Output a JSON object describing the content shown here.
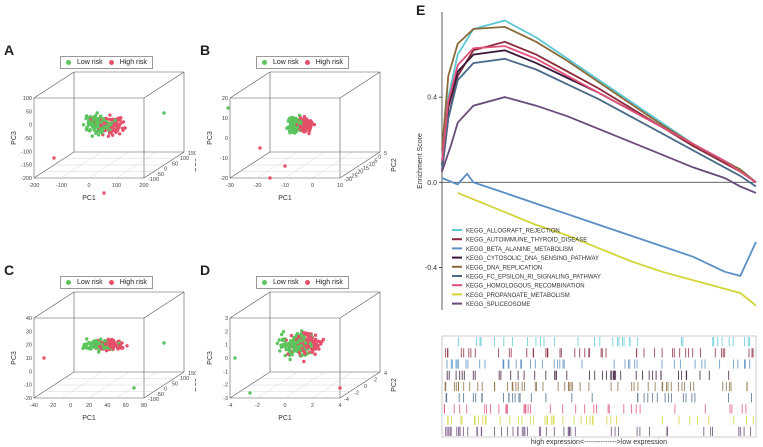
{
  "colors": {
    "low_risk": "#5cc45c",
    "high_risk": "#e5506a",
    "axis": "#444444"
  },
  "legend": {
    "low_label": "Low risk",
    "high_label": "High risk"
  },
  "panels": {
    "A": {
      "label": "A",
      "pc1": {
        "title": "PC1",
        "ticks": [
          "-200",
          "-100",
          "0",
          "100",
          "200"
        ]
      },
      "pc2": {
        "title": "PC2",
        "ticks": [
          "-100",
          "-50",
          "0",
          "50",
          "100",
          "150"
        ]
      },
      "pc3": {
        "title": "PC3",
        "ticks": [
          "-200",
          "-150",
          "-100",
          "-50",
          "0",
          "50",
          "100"
        ]
      }
    },
    "B": {
      "label": "B",
      "pc1": {
        "title": "PC1",
        "ticks": [
          "-30",
          "-20",
          "-10",
          "0",
          "10"
        ]
      },
      "pc2": {
        "title": "PC2",
        "ticks": [
          "-30",
          "-25",
          "-20",
          "-15",
          "-10",
          "-5",
          "0",
          "5"
        ]
      },
      "pc3": {
        "title": "PC3",
        "ticks": [
          "-20",
          "-10",
          "0",
          "10",
          "20"
        ]
      }
    },
    "C": {
      "label": "C",
      "pc1": {
        "title": "PC1",
        "ticks": [
          "-40",
          "-20",
          "0",
          "20",
          "40",
          "60",
          "80"
        ]
      },
      "pc2": {
        "title": "PC2",
        "ticks": [
          "-100",
          "-50",
          "0",
          "50",
          "100",
          "150"
        ]
      },
      "pc3": {
        "title": "PC3",
        "ticks": [
          "-20",
          "-10",
          "0",
          "10",
          "20",
          "30",
          "40"
        ]
      }
    },
    "D": {
      "label": "D",
      "pc1": {
        "title": "PC1",
        "ticks": [
          "-4",
          "-2",
          "0",
          "2",
          "4"
        ]
      },
      "pc2": {
        "title": "PC2",
        "ticks": [
          "-4",
          "-2",
          "0",
          "2",
          "4"
        ]
      },
      "pc3": {
        "title": "PC3",
        "ticks": [
          "-3",
          "-2",
          "-1",
          "0",
          "1",
          "2",
          "3"
        ]
      }
    }
  },
  "panel_e": {
    "label": "E",
    "ylabel": "Enrichment Score",
    "xcaption": "high expression<-------------->low expression"
  },
  "chart_data": {
    "type": "line",
    "title": "",
    "ylabel": "Enrichment Score",
    "xlabel": "high expression<-------------->low expression",
    "xlim": [
      0,
      100
    ],
    "ylim": [
      -0.6,
      0.8
    ],
    "yticks": [
      "-0.4",
      "0.0",
      "0.4"
    ],
    "ytick_values": [
      -0.4,
      0.0,
      0.4
    ],
    "series": [
      {
        "name": "KEGG_ALLOGRAFT_REJECTION",
        "color": "#5bc8d4",
        "x": [
          0,
          2,
          5,
          10,
          20,
          30,
          40,
          50,
          60,
          70,
          80,
          90,
          95,
          100
        ],
        "y": [
          0.1,
          0.4,
          0.6,
          0.72,
          0.76,
          0.68,
          0.58,
          0.48,
          0.38,
          0.28,
          0.18,
          0.1,
          0.06,
          0.0
        ]
      },
      {
        "name": "KEGG_AUTOIMMUNE_THYROID_DISEASE",
        "color": "#8a2a3a",
        "x": [
          0,
          2,
          5,
          10,
          20,
          30,
          40,
          50,
          60,
          70,
          80,
          90,
          95,
          100
        ],
        "y": [
          0.05,
          0.3,
          0.5,
          0.62,
          0.66,
          0.6,
          0.52,
          0.44,
          0.35,
          0.26,
          0.17,
          0.09,
          0.05,
          0.0
        ]
      },
      {
        "name": "KEGG_BETA_ALANINE_METABOLISM",
        "color": "#5a8ec4",
        "x": [
          0,
          5,
          8,
          10,
          20,
          30,
          40,
          50,
          60,
          70,
          80,
          90,
          95,
          100
        ],
        "y": [
          0.02,
          -0.01,
          0.04,
          0.0,
          -0.05,
          -0.1,
          -0.15,
          -0.2,
          -0.25,
          -0.3,
          -0.35,
          -0.42,
          -0.44,
          -0.28
        ]
      },
      {
        "name": "KEGG_CYTOSOLIC_DNA_SENSING_PATHWAY",
        "color": "#3a1a3a",
        "x": [
          0,
          2,
          5,
          10,
          20,
          30,
          40,
          50,
          60,
          70,
          80,
          90,
          95,
          100
        ],
        "y": [
          0.08,
          0.35,
          0.52,
          0.6,
          0.62,
          0.56,
          0.49,
          0.42,
          0.34,
          0.26,
          0.18,
          0.1,
          0.05,
          0.0
        ]
      },
      {
        "name": "KEGG_DNA_REPLICATION",
        "color": "#8a6a3a",
        "x": [
          0,
          2,
          5,
          10,
          20,
          30,
          40,
          50,
          60,
          70,
          80,
          90,
          95,
          100
        ],
        "y": [
          0.15,
          0.5,
          0.65,
          0.72,
          0.73,
          0.66,
          0.57,
          0.47,
          0.37,
          0.27,
          0.18,
          0.1,
          0.06,
          0.0
        ]
      },
      {
        "name": "KEGG_FC_EPSILON_RI_SIGNALING_PATHWAY",
        "color": "#4a6a8a",
        "x": [
          0,
          2,
          5,
          10,
          20,
          30,
          40,
          50,
          60,
          70,
          80,
          90,
          95,
          100
        ],
        "y": [
          0.06,
          0.3,
          0.48,
          0.56,
          0.58,
          0.53,
          0.46,
          0.39,
          0.31,
          0.23,
          0.15,
          0.07,
          0.03,
          -0.02
        ]
      },
      {
        "name": "KEGG_HOMOLOGOUS_RECOMBINATION",
        "color": "#e0507a",
        "x": [
          0,
          2,
          5,
          10,
          20,
          30,
          40,
          50,
          60,
          70,
          80,
          90,
          95,
          100
        ],
        "y": [
          0.1,
          0.38,
          0.55,
          0.63,
          0.64,
          0.58,
          0.5,
          0.42,
          0.34,
          0.26,
          0.18,
          0.1,
          0.05,
          0.0
        ]
      },
      {
        "name": "KEGG_PROPANOATE_METABOLISM",
        "color": "#d4d43a",
        "x": [
          5,
          10,
          20,
          30,
          40,
          50,
          60,
          70,
          80,
          90,
          95,
          100
        ],
        "y": [
          -0.05,
          -0.08,
          -0.14,
          -0.2,
          -0.25,
          -0.31,
          -0.37,
          -0.42,
          -0.46,
          -0.5,
          -0.52,
          -0.58
        ]
      },
      {
        "name": "KEGG_SPLICEOSOME",
        "color": "#6a4a7a",
        "x": [
          0,
          3,
          5,
          10,
          20,
          30,
          40,
          50,
          60,
          70,
          80,
          90,
          95,
          100
        ],
        "y": [
          0.05,
          0.18,
          0.28,
          0.36,
          0.4,
          0.36,
          0.31,
          0.25,
          0.19,
          0.13,
          0.07,
          0.02,
          -0.02,
          -0.05
        ]
      }
    ]
  }
}
